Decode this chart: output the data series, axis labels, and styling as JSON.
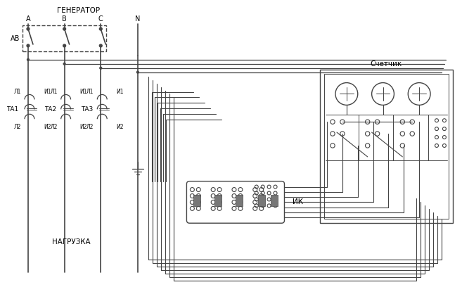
{
  "bg_color": "#ffffff",
  "lc": "#444444",
  "fig_w": 6.57,
  "fig_h": 4.08,
  "dpi": 100,
  "labels": {
    "generator": "ГЕНЕРАТОР",
    "load": "НАГРУЗКА",
    "meter": "Счетчик",
    "ik": "ИК",
    "A": "А",
    "B": "В",
    "C": "С",
    "N": "N",
    "AB": "АВ",
    "TA1": "ТА1",
    "TA2": "ТА2",
    "TA3": "ТА3",
    "L1": "Л1",
    "I1": "И1",
    "L2": "Л2",
    "I2": "И2"
  }
}
